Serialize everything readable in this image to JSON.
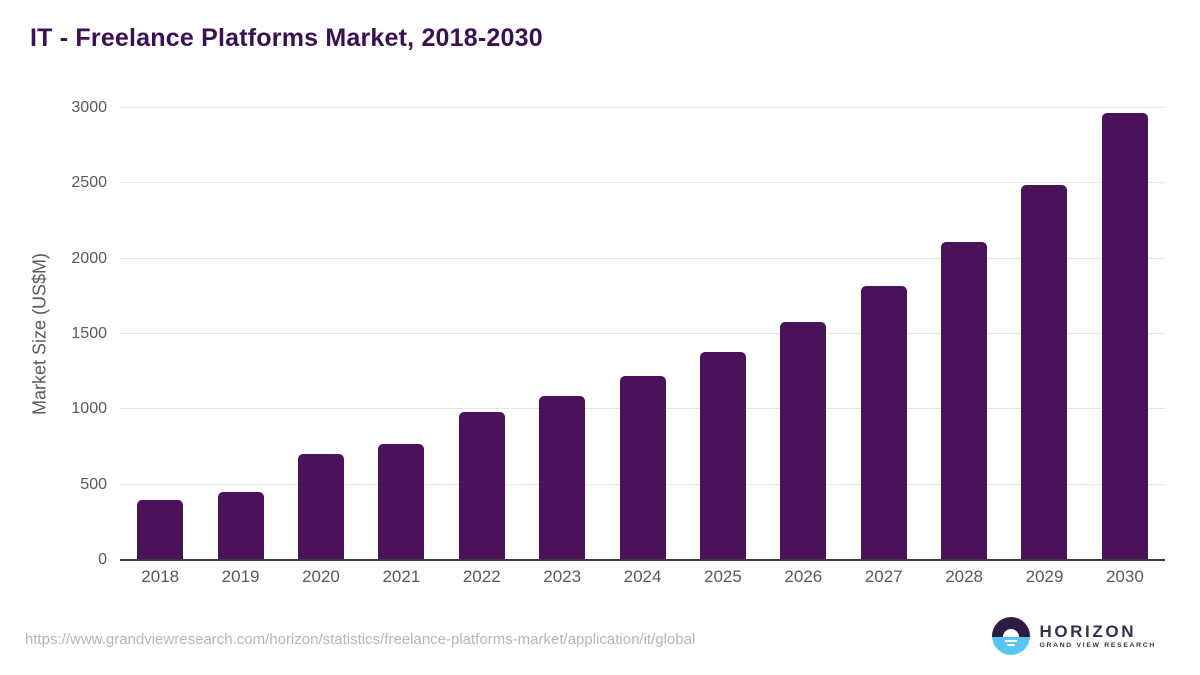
{
  "chart_data": {
    "type": "bar",
    "title": "IT - Freelance Platforms Market, 2018-2030",
    "categories": [
      "2018",
      "2019",
      "2020",
      "2021",
      "2022",
      "2023",
      "2024",
      "2025",
      "2026",
      "2027",
      "2028",
      "2029",
      "2030"
    ],
    "values": [
      400,
      450,
      705,
      770,
      980,
      1090,
      1220,
      1380,
      1580,
      1820,
      2110,
      2490,
      2970
    ],
    "xlabel": "",
    "ylabel": "Market Size (US$M)",
    "ylim": [
      0,
      3000
    ],
    "yticks": [
      0,
      500,
      1000,
      1500,
      2000,
      2500,
      3000
    ],
    "grid": "horizontal",
    "legend_position": "none",
    "bar_color": "#4a1259"
  },
  "footer": {
    "source_url": "https://www.grandviewresearch.com/horizon/statistics/freelance-platforms-market/application/it/global",
    "logo": {
      "name": "HORIZON",
      "subtitle": "GRAND VIEW RESEARCH"
    }
  },
  "colors": {
    "title_text": "#3b1053",
    "bar": "#4a1259",
    "gridline": "#e4e4e4",
    "axis_line": "#3a3a3a",
    "tick_text": "#58595b",
    "url_text": "#b5b5b5",
    "logo_purple": "#3a2b50",
    "logo_circle_top": "#2f1c45",
    "logo_circle_bottom": "#56c5f2"
  }
}
